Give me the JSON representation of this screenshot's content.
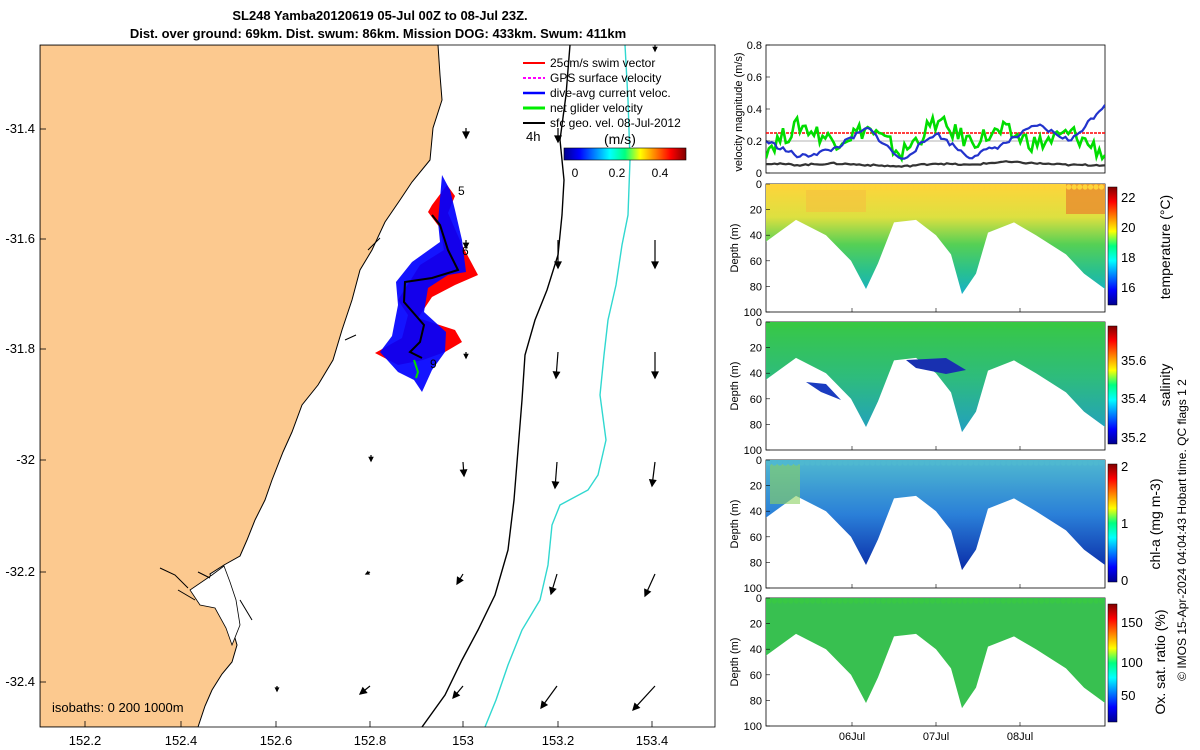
{
  "header": {
    "title_line1": "SL248 Yamba20120619 05-Jul 00Z to 08-Jul 23Z.",
    "title_line2": "Dist. over ground: 69km. Dist. swum: 86km. Mission DOG: 433km. Swum: 411km"
  },
  "map": {
    "lon_ticks": [
      "152.2",
      "152.4",
      "152.6",
      "152.8",
      "153",
      "153.2",
      "153.4"
    ],
    "lat_ticks": [
      "-31.4",
      "-31.6",
      "-31.8",
      "-32",
      "-32.2",
      "-32.4"
    ],
    "legend": [
      {
        "label": "25cm/s swim vector",
        "color": "#ff0000"
      },
      {
        "label": "GPS surface velocity",
        "color": "#ff00ff"
      },
      {
        "label": "dive-avg current veloc.",
        "color": "#0000ff"
      },
      {
        "label": "net glider velocity",
        "color": "#00ee00"
      },
      {
        "label": "sfc geo. vel. 08-Jul-2012",
        "color": "#000000"
      }
    ],
    "colorbar_title": "(m/s)",
    "colorbar_ticks": [
      "0",
      "0.2",
      "0.4"
    ],
    "time_label": "4h",
    "day_markers": [
      "5",
      "6",
      "9"
    ],
    "isobaths_label": "isobaths: 0   200  1000m",
    "land_color": "#fcc98f"
  },
  "timeseries": {
    "ylabel": "velocity magnitude (m/s)",
    "yticks": [
      "0",
      "0.2",
      "0.4",
      "0.6",
      "0.8"
    ]
  },
  "sections": [
    {
      "label": "temperature (°C)",
      "cticks": [
        "16",
        "18",
        "20",
        "22"
      ]
    },
    {
      "label": "salinity",
      "cticks": [
        "35.2",
        "35.4",
        "35.6"
      ]
    },
    {
      "label": "chl-a (mg m-3)",
      "cticks": [
        "0",
        "1",
        "2"
      ]
    },
    {
      "label": "Ox. sat. ratio (%)",
      "cticks": [
        "50",
        "100",
        "150"
      ]
    }
  ],
  "depth": {
    "ylabel": "Depth (m)",
    "ticks": [
      "0",
      "20",
      "40",
      "60",
      "80",
      "100"
    ]
  },
  "date_ticks": [
    "06Jul",
    "07Jul",
    "08Jul"
  ],
  "side_note": "© IMOS 15-Apr-2024 04:04:43 Hobart time. QC flags 1  2",
  "chart_data": [
    {
      "type": "line",
      "title": "velocity magnitude",
      "ylabel": "velocity magnitude (m/s)",
      "ylim": [
        0,
        0.8
      ],
      "x": [
        0,
        0.1,
        0.2,
        0.3,
        0.4,
        0.5,
        0.6,
        0.7,
        0.8,
        0.9,
        1
      ],
      "series": [
        {
          "name": "25cm/s swim vector",
          "color": "#ff0000",
          "values": [
            0.25,
            0.25,
            0.25,
            0.25,
            0.25,
            0.25,
            0.25,
            0.25,
            0.25,
            0.25,
            0.25
          ]
        },
        {
          "name": "net glider velocity",
          "color": "#00dd00",
          "values": [
            0.15,
            0.3,
            0.2,
            0.28,
            0.12,
            0.32,
            0.2,
            0.26,
            0.18,
            0.25,
            0.12
          ]
        },
        {
          "name": "dive-avg current veloc.",
          "color": "#2233cc",
          "values": [
            0.2,
            0.1,
            0.15,
            0.28,
            0.08,
            0.25,
            0.1,
            0.18,
            0.3,
            0.2,
            0.43
          ]
        },
        {
          "name": "sfc geo. vel.",
          "color": "#333333",
          "values": [
            0.06,
            0.05,
            0.06,
            0.05,
            0.04,
            0.06,
            0.05,
            0.07,
            0.06,
            0.05,
            0.05
          ]
        }
      ]
    },
    {
      "type": "heatmap",
      "ylabel": "Depth (m)",
      "colorbar": "temperature (°C)",
      "clim": [
        15,
        22.5
      ]
    },
    {
      "type": "heatmap",
      "ylabel": "Depth (m)",
      "colorbar": "salinity",
      "clim": [
        35.1,
        35.75
      ]
    },
    {
      "type": "heatmap",
      "ylabel": "Depth (m)",
      "colorbar": "chl-a (mg m-3)",
      "clim": [
        0,
        2
      ]
    },
    {
      "type": "heatmap",
      "ylabel": "Depth (m)",
      "colorbar": "Ox. sat. ratio (%)",
      "clim": [
        25,
        175
      ]
    }
  ]
}
